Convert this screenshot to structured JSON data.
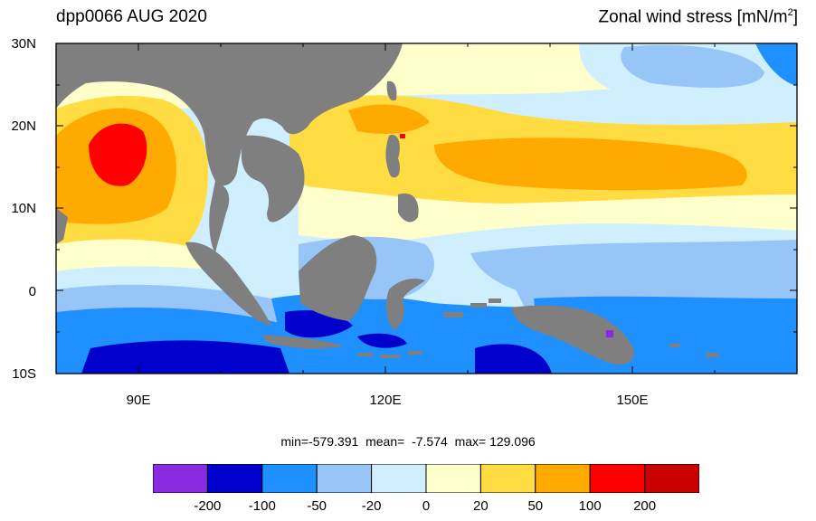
{
  "title_left": "dpp0066 AUG 2020",
  "title_right": {
    "text": "Zonal wind stress [mN/m",
    "sup": "2",
    "close": "]"
  },
  "axes": {
    "lat_labels": [
      "30N",
      "20N",
      "10N",
      "0",
      "10S"
    ],
    "lon_labels": [
      "90E",
      "120E",
      "150E"
    ]
  },
  "stats": {
    "min_label": "min=-579.391",
    "mean_label": "mean=  -7.574",
    "max_label": "max= 129.096"
  },
  "colorbar": {
    "colors": [
      "#8a2be2",
      "#0000cd",
      "#1e90ff",
      "#97c5f8",
      "#cfefff",
      "#ffffcc",
      "#fedc42",
      "#ffaa00",
      "#ff0000",
      "#c80000"
    ],
    "labels": [
      "-200",
      "-100",
      "-50",
      "-20",
      "0",
      "20",
      "50",
      "100",
      "200"
    ]
  },
  "map_colors": {
    "land": "#7f7f7f",
    "ocean_base": "#cfefff"
  }
}
